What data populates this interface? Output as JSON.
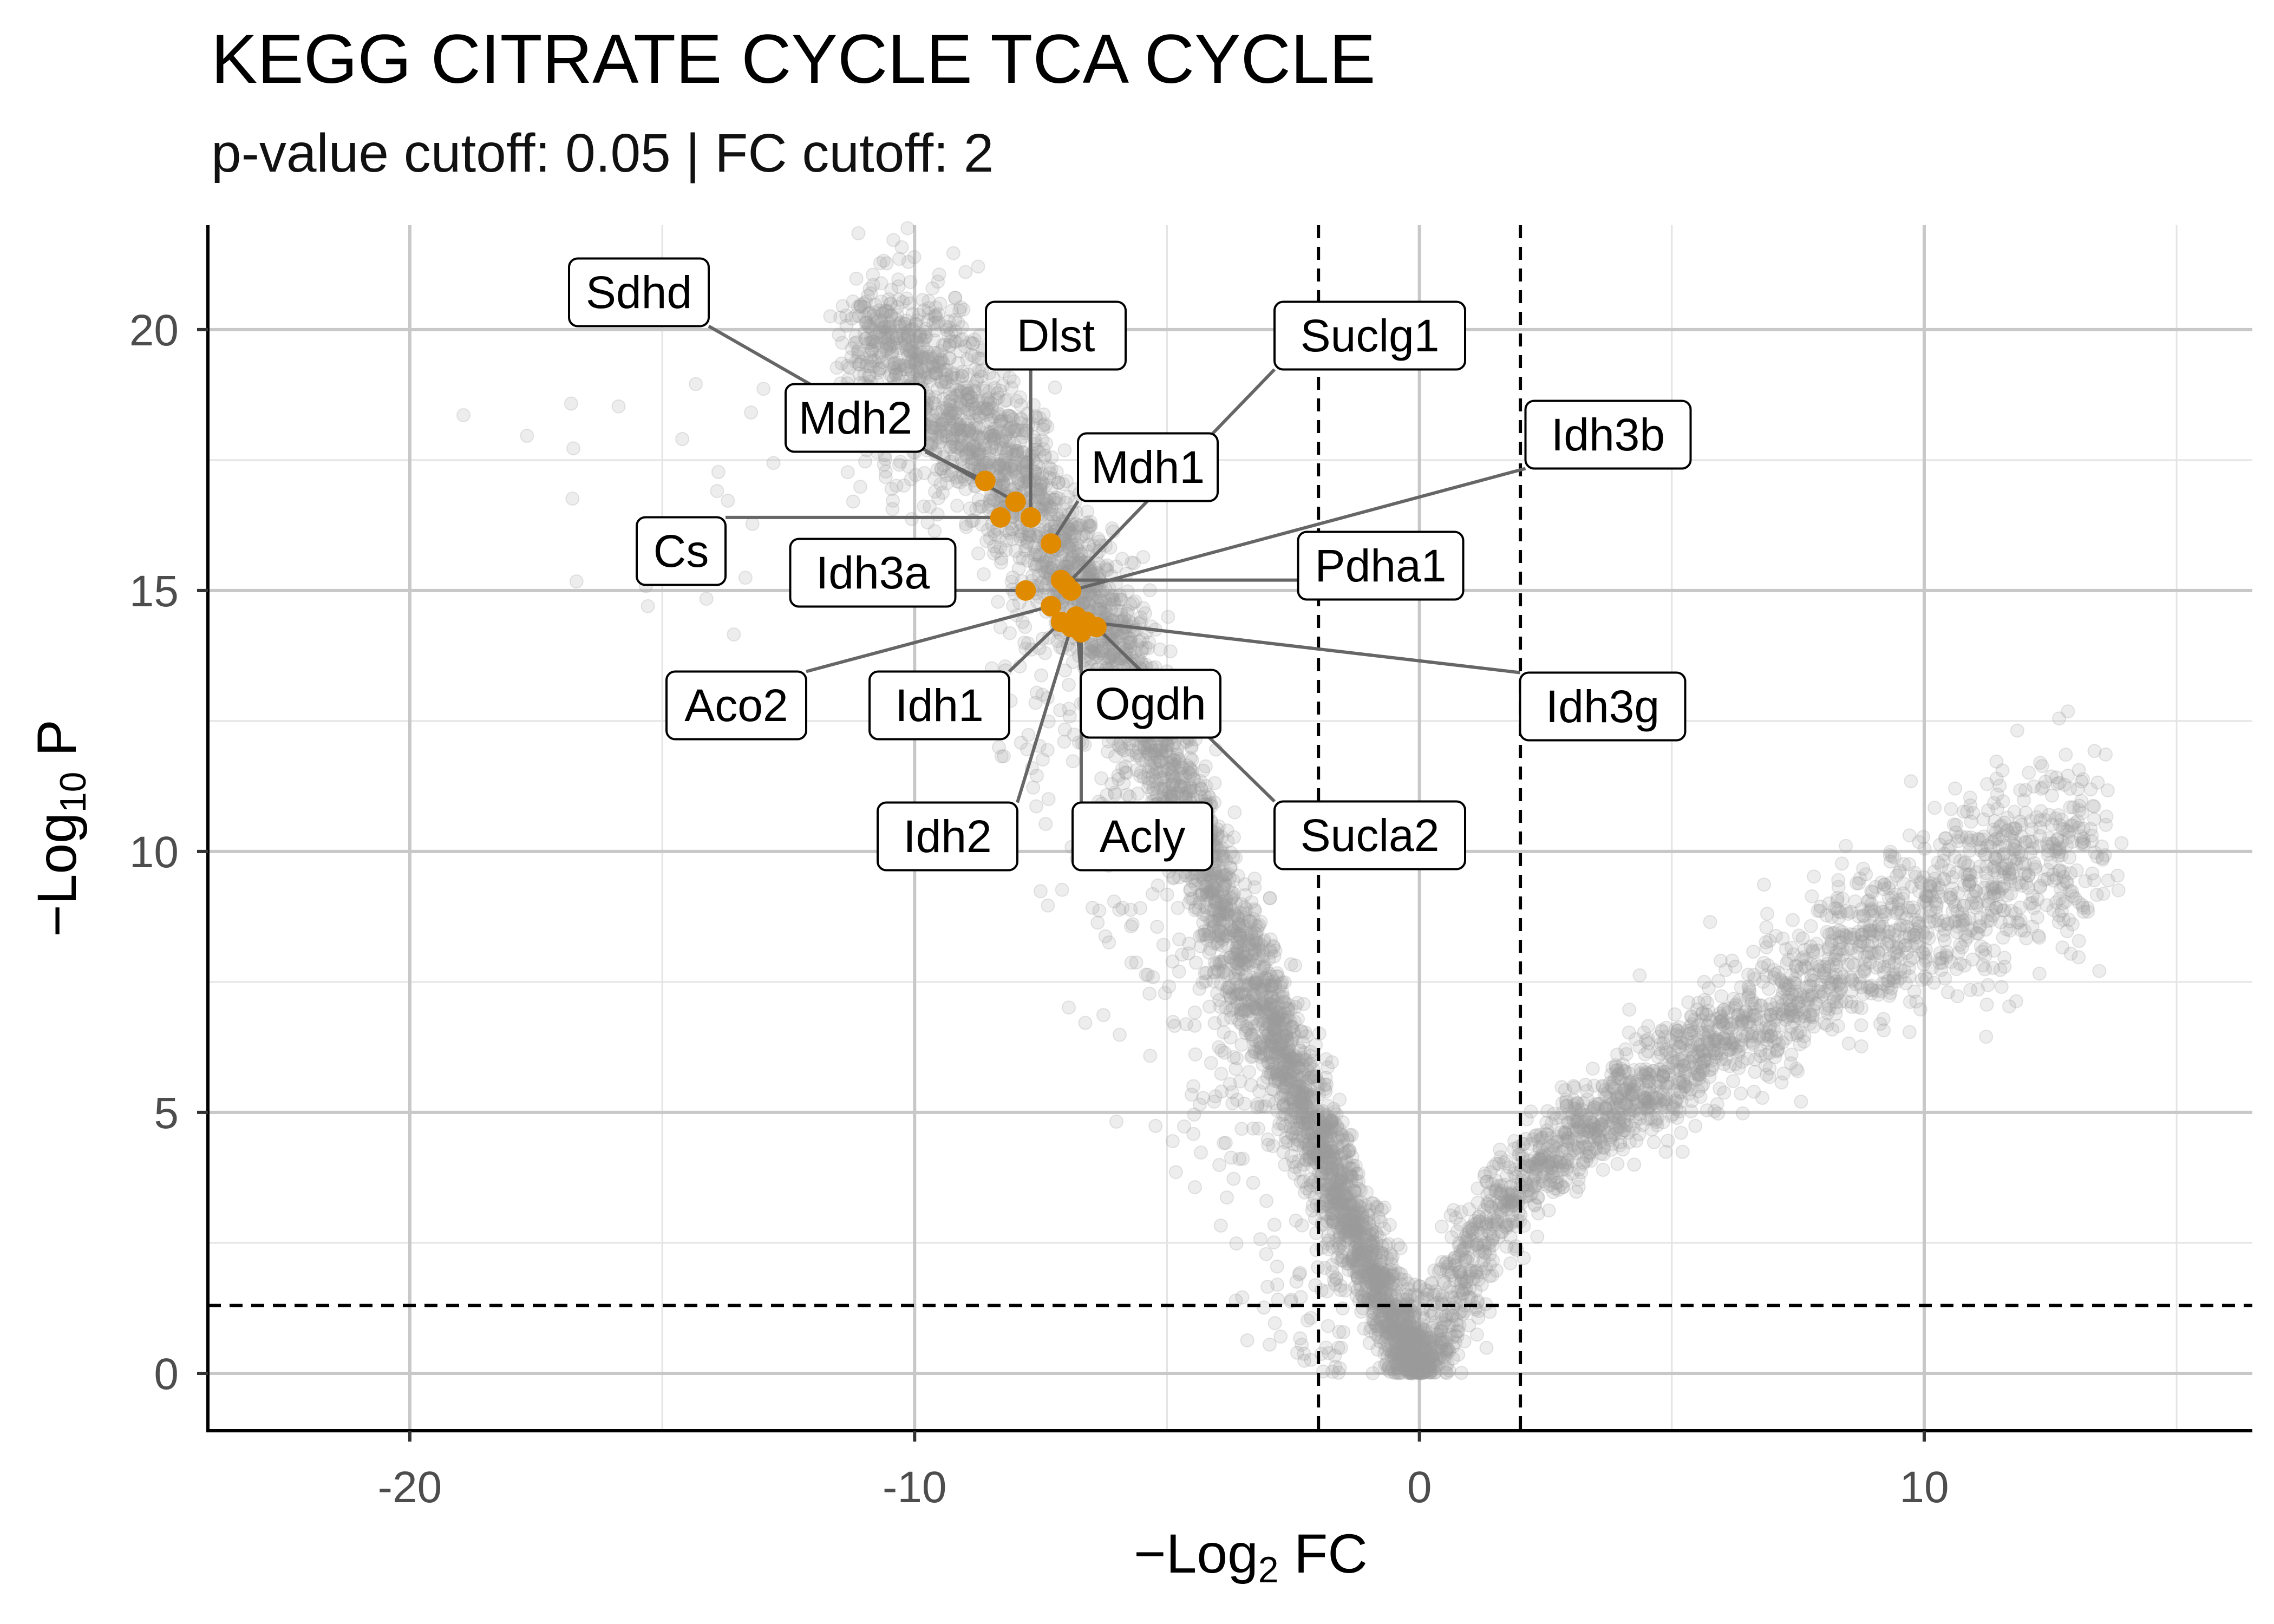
{
  "title": "KEGG CITRATE CYCLE TCA CYCLE",
  "subtitle": "p-value cutoff: 0.05 | FC cutoff: 2",
  "chart_data": {
    "type": "scatter",
    "title": "KEGG CITRATE CYCLE TCA CYCLE",
    "subtitle": "p-value cutoff: 0.05 | FC cutoff: 2",
    "xlabel": "−Log₂ FC",
    "ylabel": "−Log₁₀ P",
    "xlim": [
      -24,
      16.5
    ],
    "ylim": [
      -1.1,
      22
    ],
    "x_ticks": [
      -20,
      -10,
      0,
      10
    ],
    "y_ticks": [
      0,
      5,
      10,
      15,
      20
    ],
    "grid": true,
    "cutoffs": {
      "x": [
        -2,
        2
      ],
      "y": 1.3
    },
    "colors": {
      "background_points": "#9a9a9a",
      "highlight": "#e08a00",
      "cutoff_line": "#000000",
      "grid": "#c8c8c8"
    },
    "background_shape": {
      "left_arm": [
        [
          0,
          0
        ],
        [
          -1,
          2.1
        ],
        [
          -2,
          4.5
        ],
        [
          -3,
          6.8
        ],
        [
          -4,
          9.3
        ],
        [
          -5,
          11.8
        ],
        [
          -6,
          14
        ],
        [
          -7,
          15.8
        ],
        [
          -8,
          17.2
        ],
        [
          -9,
          18.3
        ],
        [
          -10,
          19.1
        ],
        [
          -11,
          19.5
        ],
        [
          -12,
          19.3
        ]
      ],
      "right_arm": [
        [
          0,
          0
        ],
        [
          1,
          2.2
        ],
        [
          2,
          3.7
        ],
        [
          3,
          4.5
        ],
        [
          4,
          5.2
        ],
        [
          5,
          5.8
        ],
        [
          6,
          6.4
        ],
        [
          7,
          7
        ],
        [
          8,
          7.6
        ],
        [
          9,
          8.3
        ],
        [
          10,
          8.8
        ],
        [
          11,
          9.3
        ],
        [
          12,
          9.8
        ],
        [
          13,
          10.2
        ]
      ]
    },
    "highlighted_genes": [
      {
        "label": "Sdhd",
        "x": -8.0,
        "y": 16.7
      },
      {
        "label": "Mdh2",
        "x": -8.6,
        "y": 17.1
      },
      {
        "label": "Dlst",
        "x": -7.7,
        "y": 16.4
      },
      {
        "label": "Suclg1",
        "x": -7.0,
        "y": 15.1
      },
      {
        "label": "Idh3b",
        "x": -6.9,
        "y": 15.0
      },
      {
        "label": "Mdh1",
        "x": -7.3,
        "y": 15.9
      },
      {
        "label": "Cs",
        "x": -8.3,
        "y": 16.4
      },
      {
        "label": "Idh3a",
        "x": -7.8,
        "y": 15.0
      },
      {
        "label": "Pdha1",
        "x": -7.1,
        "y": 15.2
      },
      {
        "label": "Aco2",
        "x": -7.3,
        "y": 14.7
      },
      {
        "label": "Idh1",
        "x": -7.1,
        "y": 14.4
      },
      {
        "label": "Ogdh",
        "x": -6.8,
        "y": 14.5
      },
      {
        "label": "Idh3g",
        "x": -6.6,
        "y": 14.4
      },
      {
        "label": "Idh2",
        "x": -6.9,
        "y": 14.3
      },
      {
        "label": "Acly",
        "x": -6.7,
        "y": 14.2
      },
      {
        "label": "Sucla2",
        "x": -6.4,
        "y": 14.3
      }
    ]
  }
}
